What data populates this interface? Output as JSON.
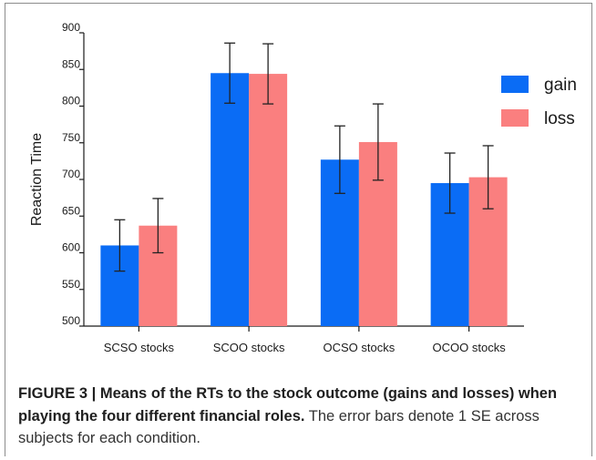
{
  "chart_data": {
    "type": "bar",
    "categories": [
      "SCSO stocks",
      "SCOO stocks",
      "OCSO stocks",
      "OCOO stocks"
    ],
    "series": [
      {
        "name": "gain",
        "color": "#0a6cf5",
        "values": [
          610,
          845,
          727,
          695
        ],
        "error": [
          35,
          41,
          46,
          41
        ]
      },
      {
        "name": "loss",
        "color": "#fa7f7f",
        "values": [
          637,
          844,
          751,
          703
        ],
        "error": [
          37,
          41,
          52,
          43
        ]
      }
    ],
    "xlabel": "",
    "ylabel": "Reaction Time",
    "ylim": [
      500,
      900
    ],
    "yticks": [
      500,
      550,
      600,
      650,
      700,
      750,
      800,
      850,
      900
    ],
    "grid": false,
    "legend_position": "top-right",
    "error_bars": "1 SE"
  },
  "caption": {
    "lead": "FIGURE 3 | Means of the RTs to the stock outcome (gains and losses) when playing the four different financial roles.",
    "body": "The error bars denote 1 SE across subjects for each condition."
  }
}
